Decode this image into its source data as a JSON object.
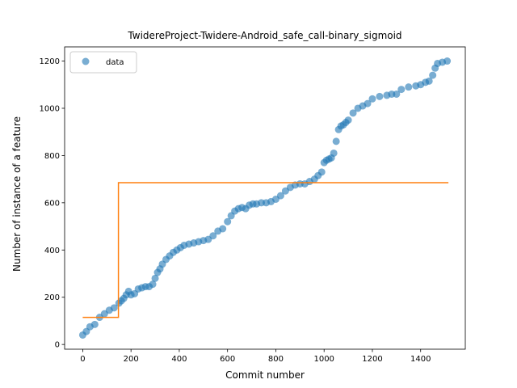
{
  "chart_data": {
    "type": "scatter",
    "title": "TwidereProject-Twidere-Android_safe_call-binary_sigmoid",
    "xlabel": "Commit number",
    "ylabel": "Number of instance of a feature",
    "xlim": [
      -75,
      1585
    ],
    "ylim": [
      -20,
      1260
    ],
    "xticks": [
      0,
      200,
      400,
      600,
      800,
      1000,
      1200,
      1400
    ],
    "yticks": [
      0,
      200,
      400,
      600,
      800,
      1000,
      1200
    ],
    "grid": false,
    "legend": {
      "position": "top-left",
      "entries": [
        "data"
      ]
    },
    "colors": {
      "data": "#1f77b4",
      "fit": "#ff7f0e"
    },
    "series": [
      {
        "name": "data",
        "kind": "scatter",
        "x": [
          0,
          15,
          30,
          50,
          70,
          90,
          110,
          130,
          150,
          160,
          170,
          180,
          190,
          200,
          215,
          230,
          245,
          260,
          275,
          290,
          300,
          310,
          320,
          330,
          345,
          360,
          375,
          390,
          405,
          420,
          440,
          460,
          480,
          500,
          520,
          540,
          560,
          580,
          600,
          615,
          630,
          645,
          660,
          675,
          690,
          705,
          720,
          740,
          760,
          780,
          800,
          820,
          840,
          860,
          880,
          900,
          920,
          940,
          960,
          975,
          990,
          1000,
          1010,
          1020,
          1030,
          1040,
          1050,
          1060,
          1070,
          1080,
          1090,
          1100,
          1120,
          1140,
          1160,
          1180,
          1200,
          1230,
          1260,
          1280,
          1300,
          1320,
          1350,
          1380,
          1400,
          1420,
          1435,
          1450,
          1460,
          1470,
          1490,
          1510
        ],
        "y": [
          40,
          55,
          75,
          85,
          115,
          130,
          145,
          155,
          175,
          185,
          195,
          210,
          225,
          210,
          215,
          235,
          240,
          245,
          245,
          255,
          280,
          305,
          320,
          340,
          360,
          375,
          390,
          400,
          410,
          420,
          425,
          430,
          435,
          440,
          445,
          460,
          480,
          490,
          520,
          545,
          565,
          575,
          580,
          575,
          590,
          595,
          595,
          600,
          600,
          605,
          615,
          630,
          650,
          665,
          675,
          680,
          680,
          690,
          700,
          715,
          730,
          770,
          780,
          785,
          790,
          810,
          860,
          910,
          925,
          930,
          940,
          950,
          980,
          1000,
          1010,
          1020,
          1040,
          1050,
          1055,
          1060,
          1060,
          1080,
          1090,
          1095,
          1100,
          1110,
          1115,
          1140,
          1170,
          1190,
          1195,
          1200
        ]
      },
      {
        "name": "",
        "kind": "step",
        "x": [
          0,
          148,
          148,
          1515
        ],
        "y": [
          115,
          115,
          685,
          685
        ]
      }
    ]
  }
}
